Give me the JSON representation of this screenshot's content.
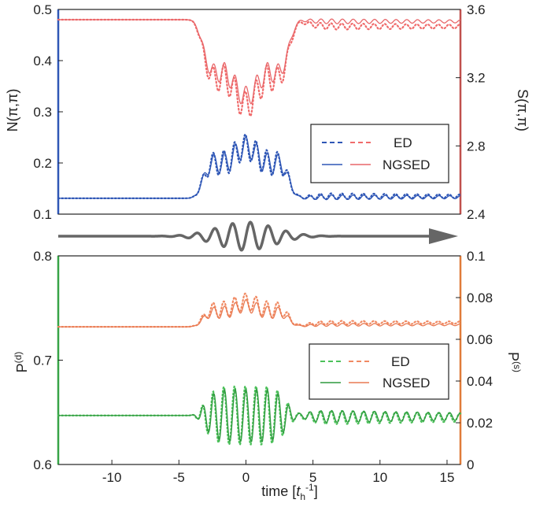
{
  "chart_data": [
    {
      "type": "line",
      "panel": "top",
      "xlabel": "",
      "ylabel_left": "N(π,π)",
      "ylabel_right": "S(π,π)",
      "xlim": [
        -14,
        16
      ],
      "ylim_left": [
        0.1,
        0.5
      ],
      "ylim_right": [
        2.4,
        3.6
      ],
      "left_ticks": [
        "0.1",
        "0.2",
        "0.3",
        "0.4",
        "0.5"
      ],
      "right_ticks": [
        "2.4",
        "2.8",
        "3.2",
        "3.6"
      ],
      "grid": false,
      "legend": {
        "placement": "lower-right",
        "entries": [
          "ED",
          "NGSED"
        ]
      },
      "colors": {
        "left_series": "#2f57b6",
        "right_series": "#e8676a",
        "left_axis": "#2f57b6",
        "right_axis": "#c0504d"
      },
      "series": [
        {
          "name": "ED",
          "axis": "right",
          "style": "dotted",
          "color": "#f06b6b",
          "baseline": 3.54,
          "dip": 0.5,
          "osc": 0.08,
          "end": 3.5
        },
        {
          "name": "NGSED",
          "axis": "right",
          "style": "solid",
          "color": "#e8676a",
          "baseline": 3.54,
          "dip": 0.45,
          "osc": 0.06,
          "end": 3.53
        },
        {
          "name": "ED",
          "axis": "left",
          "style": "dotted",
          "color": "#2f57b6",
          "baseline": 0.131,
          "dip": 0.1,
          "osc": 0.025,
          "end": 0.135
        },
        {
          "name": "NGSED",
          "axis": "left",
          "style": "solid",
          "color": "#2f57b6",
          "baseline": 0.131,
          "dip": 0.1,
          "osc": 0.02,
          "end": 0.133
        }
      ]
    },
    {
      "type": "line",
      "panel": "bottom",
      "xlabel": "time [t_h^-1]",
      "xlabel_main": "time [",
      "xlabel_t": "t",
      "xlabel_sub": "h",
      "xlabel_sup": "-1",
      "xlabel_close": "]",
      "ylabel_left": "P(d)",
      "ylabel_right": "P(s)",
      "ylabel_left_main": "P",
      "ylabel_left_sup": "(d)",
      "ylabel_right_main": "P",
      "ylabel_right_sup": "(s)",
      "xlim": [
        -14,
        16
      ],
      "xticks": [
        "-10",
        "-5",
        "0",
        "5",
        "10",
        "15"
      ],
      "ylim_left": [
        0.6,
        0.8
      ],
      "ylim_right": [
        0,
        0.1
      ],
      "left_ticks": [
        "0.6",
        "0.7",
        "0.8"
      ],
      "right_ticks": [
        "0",
        "0.02",
        "0.04",
        "0.06",
        "0.08",
        "0.1"
      ],
      "grid": false,
      "legend": {
        "placement": "lower-right",
        "entries": [
          "ED",
          "NGSED"
        ]
      },
      "colors": {
        "left_series": "#37a347",
        "right_series": "#e97a52",
        "left_axis": "#37a347",
        "right_axis": "#e07b39"
      },
      "series": [
        {
          "name": "ED",
          "axis": "right",
          "style": "dotted",
          "color": "#f08a63",
          "baseline": 0.066,
          "dip": 0.012,
          "osc": 0.004,
          "end": 0.068
        },
        {
          "name": "NGSED",
          "axis": "right",
          "style": "solid",
          "color": "#e97a52",
          "baseline": 0.066,
          "dip": 0.01,
          "osc": 0.003,
          "end": 0.067
        },
        {
          "name": "ED",
          "axis": "left",
          "style": "dotted",
          "color": "#4cc15a",
          "baseline": 0.647,
          "dip": 0.0,
          "osc": 0.028,
          "end": 0.645
        },
        {
          "name": "NGSED",
          "axis": "left",
          "style": "solid",
          "color": "#2f9a3e",
          "baseline": 0.647,
          "dip": 0.0,
          "osc": 0.025,
          "end": 0.646
        }
      ]
    }
  ],
  "pulse": {
    "color": "#666666",
    "center": 0,
    "width": 3,
    "cycles_per_unit": 0.75
  }
}
